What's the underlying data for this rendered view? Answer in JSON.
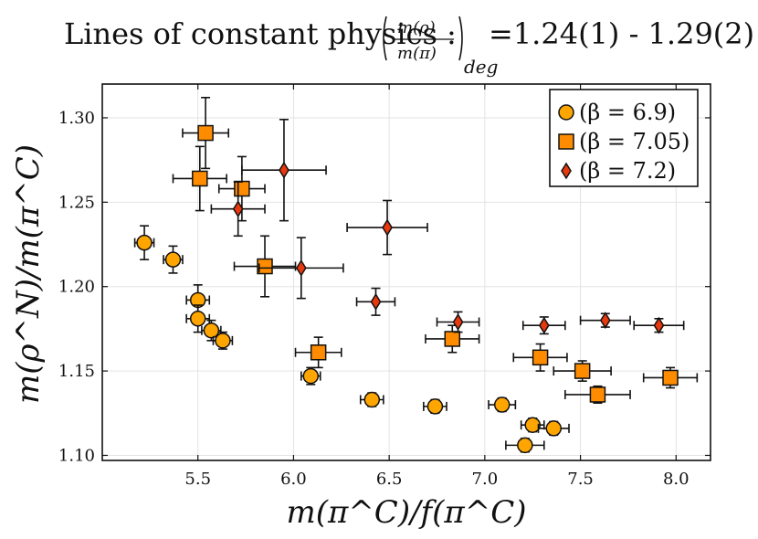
{
  "chart_data": {
    "type": "scatter",
    "title": "Lines of constant physics : (m(ρ)/m(π))deg=1.24(1) - 1.29(2)",
    "title_parts": {
      "prefix": "Lines of constant physics : ",
      "frac_num": "m(ρ)",
      "frac_den": "m(π)",
      "frac_sub": "deg",
      "suffix": "=1.24(1) - 1.29(2)"
    },
    "xlabel": "m(π^C)/f(π^C)",
    "ylabel": "m(ρ^N)/m(π^C)",
    "xlim": [
      5.0,
      8.18
    ],
    "ylim": [
      1.097,
      1.32
    ],
    "xticks": [
      "5.5",
      "6.0",
      "6.5",
      "7.0",
      "7.5",
      "8.0"
    ],
    "xtick_values": [
      5.5,
      6.0,
      6.5,
      7.0,
      7.5,
      8.0
    ],
    "yticks": [
      "1.10",
      "1.15",
      "1.20",
      "1.25",
      "1.30"
    ],
    "ytick_values": [
      1.1,
      1.15,
      1.2,
      1.25,
      1.3
    ],
    "grid": true,
    "legend_position": "top-right",
    "series": [
      {
        "name": "(β = 6.9)",
        "marker": "circle",
        "color": "#FFA500",
        "points": [
          {
            "x": 5.22,
            "y": 1.226,
            "xerr": 0.05,
            "yerr": 0.01
          },
          {
            "x": 5.37,
            "y": 1.216,
            "xerr": 0.05,
            "yerr": 0.008
          },
          {
            "x": 5.5,
            "y": 1.192,
            "xerr": 0.06,
            "yerr": 0.009
          },
          {
            "x": 5.5,
            "y": 1.181,
            "xerr": 0.06,
            "yerr": 0.008
          },
          {
            "x": 5.57,
            "y": 1.174,
            "xerr": 0.05,
            "yerr": 0.006
          },
          {
            "x": 5.63,
            "y": 1.168,
            "xerr": 0.05,
            "yerr": 0.005
          },
          {
            "x": 6.09,
            "y": 1.147,
            "xerr": 0.05,
            "yerr": 0.005
          },
          {
            "x": 6.41,
            "y": 1.133,
            "xerr": 0.06,
            "yerr": 0.004
          },
          {
            "x": 6.74,
            "y": 1.129,
            "xerr": 0.06,
            "yerr": 0.004
          },
          {
            "x": 7.09,
            "y": 1.13,
            "xerr": 0.07,
            "yerr": 0.004
          },
          {
            "x": 7.25,
            "y": 1.118,
            "xerr": 0.06,
            "yerr": 0.004
          },
          {
            "x": 7.36,
            "y": 1.116,
            "xerr": 0.08,
            "yerr": 0.004
          },
          {
            "x": 7.21,
            "y": 1.106,
            "xerr": 0.1,
            "yerr": 0.004
          }
        ]
      },
      {
        "name": "(β = 7.05)",
        "marker": "square",
        "color": "#FF8C00",
        "points": [
          {
            "x": 5.54,
            "y": 1.291,
            "xerr": 0.12,
            "yerr": 0.021
          },
          {
            "x": 5.51,
            "y": 1.264,
            "xerr": 0.14,
            "yerr": 0.019
          },
          {
            "x": 5.73,
            "y": 1.258,
            "xerr": 0.12,
            "yerr": 0.019
          },
          {
            "x": 5.85,
            "y": 1.212,
            "xerr": 0.16,
            "yerr": 0.018
          },
          {
            "x": 6.13,
            "y": 1.161,
            "xerr": 0.12,
            "yerr": 0.009
          },
          {
            "x": 6.83,
            "y": 1.169,
            "xerr": 0.14,
            "yerr": 0.008
          },
          {
            "x": 7.29,
            "y": 1.158,
            "xerr": 0.14,
            "yerr": 0.008
          },
          {
            "x": 7.51,
            "y": 1.15,
            "xerr": 0.15,
            "yerr": 0.006
          },
          {
            "x": 7.59,
            "y": 1.136,
            "xerr": 0.17,
            "yerr": 0.005
          },
          {
            "x": 7.97,
            "y": 1.146,
            "xerr": 0.14,
            "yerr": 0.006
          }
        ]
      },
      {
        "name": "(β = 7.2)",
        "marker": "diamond",
        "color": "#E8380D",
        "points": [
          {
            "x": 5.95,
            "y": 1.269,
            "xerr": 0.22,
            "yerr": 0.03
          },
          {
            "x": 5.71,
            "y": 1.246,
            "xerr": 0.14,
            "yerr": 0.016
          },
          {
            "x": 6.49,
            "y": 1.235,
            "xerr": 0.21,
            "yerr": 0.016
          },
          {
            "x": 6.04,
            "y": 1.211,
            "xerr": 0.22,
            "yerr": 0.018
          },
          {
            "x": 6.43,
            "y": 1.191,
            "xerr": 0.1,
            "yerr": 0.008
          },
          {
            "x": 6.86,
            "y": 1.179,
            "xerr": 0.11,
            "yerr": 0.006
          },
          {
            "x": 7.31,
            "y": 1.177,
            "xerr": 0.11,
            "yerr": 0.005
          },
          {
            "x": 7.63,
            "y": 1.18,
            "xerr": 0.13,
            "yerr": 0.004
          },
          {
            "x": 7.91,
            "y": 1.177,
            "xerr": 0.13,
            "yerr": 0.004
          }
        ]
      }
    ]
  }
}
